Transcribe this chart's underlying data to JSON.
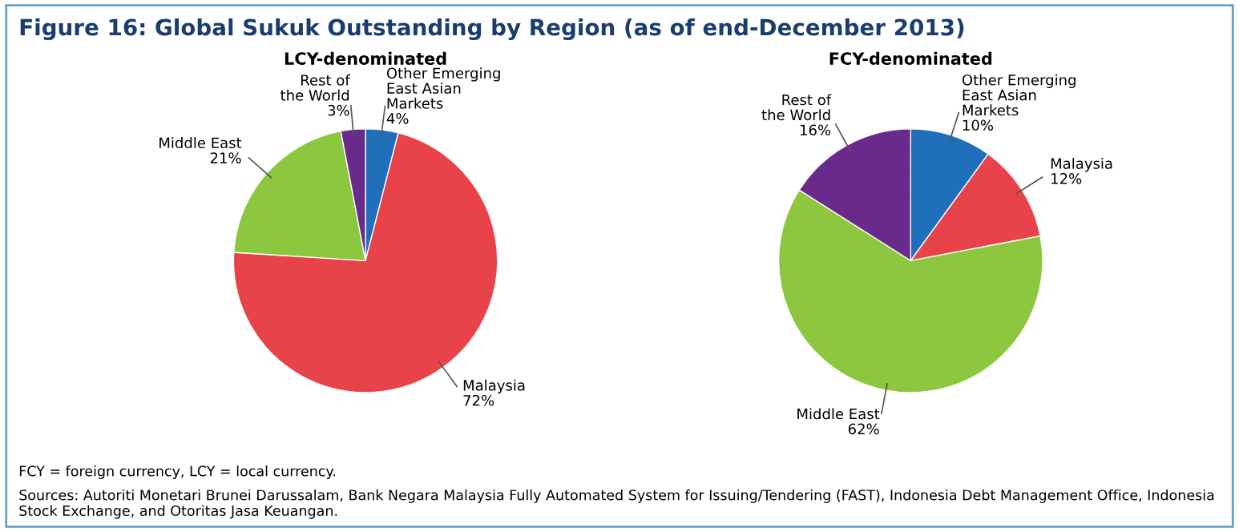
{
  "chart_data": [
    {
      "type": "pie",
      "title": "Figure 16: Global Sukuk Outstanding by Region (as of end-December 2013)",
      "subtitle": "LCY-denominated",
      "categories": [
        "Other Emerging\nEast Asian\nMarkets",
        "Malaysia",
        "Middle East",
        "Rest of\nthe World"
      ],
      "values": [
        4,
        72,
        21,
        3
      ],
      "value_labels": [
        "4%",
        "72%",
        "21%",
        "3%"
      ],
      "colors": [
        "#1f6fba",
        "#e8434a",
        "#8dc63f",
        "#6a2a8c"
      ],
      "annotations": [
        "FCY = foreign currency, LCY = local currency.",
        "Sources: Autoriti Monetari Brunei Darussalam, Bank Negara Malaysia Fully Automated System for Issuing/Tendering (FAST), Indonesia Debt Management Office, Indonesia Stock Exchange, and Otoritas Jasa Keuangan."
      ]
    },
    {
      "type": "pie",
      "subtitle": "FCY-denominated",
      "categories": [
        "Other Emerging\nEast Asian\nMarkets",
        "Malaysia",
        "Middle East",
        "Rest of\nthe World"
      ],
      "values": [
        10,
        12,
        62,
        16
      ],
      "value_labels": [
        "10%",
        "12%",
        "62%",
        "16%"
      ],
      "colors": [
        "#1f6fba",
        "#e8434a",
        "#8dc63f",
        "#6a2a8c"
      ]
    }
  ]
}
